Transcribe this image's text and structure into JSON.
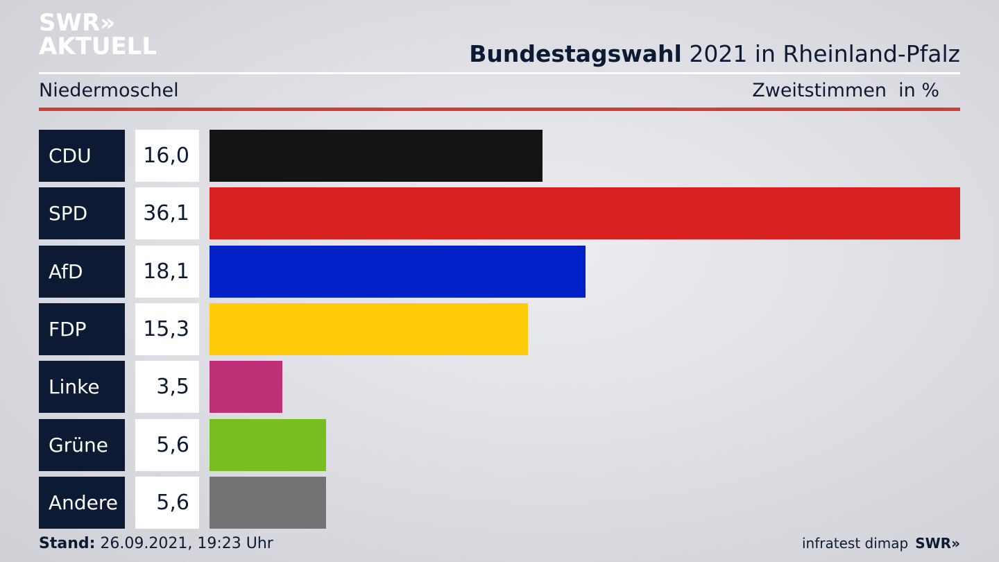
{
  "logo": {
    "line1": "SWR»",
    "line2": "AKTUELL"
  },
  "header": {
    "title_bold": "Bundestagswahl",
    "title_rest": " 2021 in Rheinland-Pfalz",
    "region": "Niedermoschel",
    "vote_type": "Zweitstimmen",
    "unit": "in %"
  },
  "chart_data": {
    "type": "bar",
    "orientation": "horizontal",
    "categories": [
      "CDU",
      "SPD",
      "AfD",
      "FDP",
      "Linke",
      "Grüne",
      "Andere"
    ],
    "values": [
      16.0,
      36.1,
      18.1,
      15.3,
      3.5,
      5.6,
      5.6
    ],
    "value_labels": [
      "16,0",
      "36,1",
      "18,1",
      "15,3",
      "3,5",
      "5,6",
      "5,6"
    ],
    "colors": [
      "#141414",
      "#d7201f",
      "#0020c8",
      "#ffcb0a",
      "#be3075",
      "#78be1e",
      "#737375"
    ],
    "max_value": 36.1
  },
  "footer": {
    "stand_label": "Stand:",
    "stand_value": " 26.09.2021, 19:23 Uhr",
    "source": "infratest dimap",
    "brand": "SWR»"
  }
}
